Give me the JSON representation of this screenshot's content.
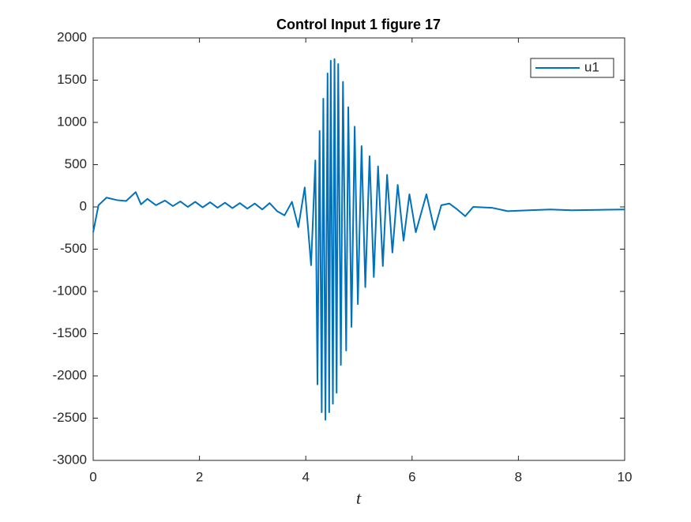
{
  "chart_data": {
    "type": "line",
    "title": "Control Input 1 figure 17",
    "xlabel": "t",
    "x": [
      0,
      0.1,
      0.25,
      0.45,
      0.62,
      0.8,
      0.9,
      1.02,
      1.18,
      1.35,
      1.5,
      1.64,
      1.78,
      1.92,
      2.06,
      2.2,
      2.34,
      2.48,
      2.62,
      2.76,
      2.9,
      3.04,
      3.18,
      3.32,
      3.46,
      3.6,
      3.74,
      3.86,
      3.98,
      4.1,
      4.18,
      4.22,
      4.26,
      4.3,
      4.33,
      4.37,
      4.41,
      4.44,
      4.47,
      4.51,
      4.54,
      4.58,
      4.61,
      4.66,
      4.7,
      4.76,
      4.8,
      4.86,
      4.92,
      4.98,
      5.05,
      5.12,
      5.2,
      5.28,
      5.36,
      5.45,
      5.53,
      5.63,
      5.73,
      5.84,
      5.95,
      6.07,
      6.27,
      6.42,
      6.55,
      6.7,
      6.85,
      7.0,
      7.15,
      7.5,
      7.8,
      8.2,
      8.6,
      9.0,
      9.5,
      10
    ],
    "series": [
      {
        "name": "u1",
        "color": "#0072bd",
        "values": [
          -300,
          20,
          110,
          80,
          70,
          175,
          30,
          95,
          20,
          75,
          10,
          65,
          0,
          60,
          -5,
          55,
          -10,
          50,
          -15,
          45,
          -20,
          40,
          -30,
          45,
          -50,
          -100,
          60,
          -240,
          230,
          -690,
          550,
          -2100,
          900,
          -2430,
          1280,
          -2520,
          1580,
          -2430,
          1730,
          -2330,
          1750,
          -2200,
          1690,
          -1870,
          1480,
          -1700,
          1180,
          -1420,
          950,
          -1150,
          720,
          -950,
          600,
          -830,
          480,
          -700,
          380,
          -540,
          260,
          -400,
          150,
          -300,
          150,
          -270,
          20,
          40,
          -30,
          -110,
          0,
          -10,
          -50,
          -40,
          -30,
          -40,
          -35,
          -30
        ]
      }
    ],
    "xlim": [
      0,
      10
    ],
    "xticks": [
      0,
      2,
      4,
      6,
      8,
      10
    ],
    "ylim": [
      -3000,
      2000
    ],
    "yticks": [
      -3000,
      -2500,
      -2000,
      -1500,
      -1000,
      -500,
      0,
      500,
      1000,
      1500,
      2000
    ],
    "grid": false,
    "legend": "northeast"
  }
}
